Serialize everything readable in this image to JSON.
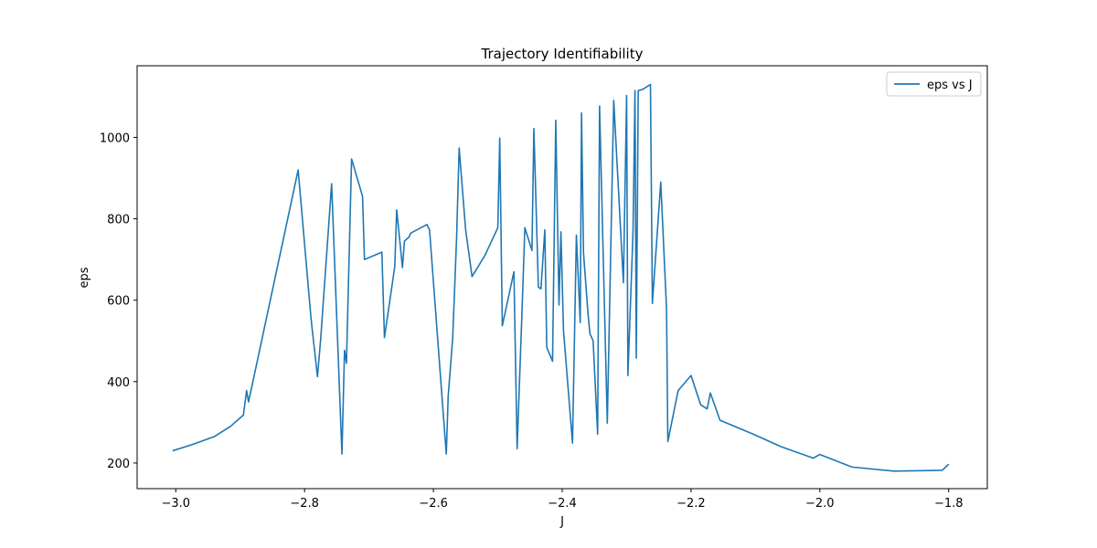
{
  "chart_data": {
    "type": "line",
    "title": "Trajectory Identifiability",
    "xlabel": "J",
    "ylabel": "eps",
    "xlim": [
      -3.06,
      -1.74
    ],
    "ylim": [
      137,
      1176
    ],
    "xticks": [
      -3.0,
      -2.8,
      -2.6,
      -2.4,
      -2.2,
      -2.0,
      -1.8
    ],
    "xtick_labels": [
      "−3.0",
      "−2.8",
      "−2.6",
      "−2.4",
      "−2.2",
      "−2.0",
      "−1.8"
    ],
    "yticks": [
      200,
      400,
      600,
      800,
      1000
    ],
    "ytick_labels": [
      "200",
      "400",
      "600",
      "800",
      "1000"
    ],
    "grid": false,
    "legend_position": "upper right",
    "series_color": "#1f77b4",
    "series": [
      {
        "name": "eps vs J",
        "x": [
          -3.005,
          -2.975,
          -2.94,
          -2.915,
          -2.895,
          -2.89,
          -2.887,
          -2.81,
          -2.79,
          -2.78,
          -2.775,
          -2.758,
          -2.742,
          -2.738,
          -2.735,
          -2.73,
          -2.727,
          -2.71,
          -2.707,
          -2.68,
          -2.676,
          -2.66,
          -2.657,
          -2.648,
          -2.645,
          -2.638,
          -2.635,
          -2.61,
          -2.606,
          -2.58,
          -2.577,
          -2.57,
          -2.564,
          -2.56,
          -2.55,
          -2.54,
          -2.52,
          -2.5,
          -2.497,
          -2.493,
          -2.475,
          -2.47,
          -2.462,
          -2.458,
          -2.447,
          -2.444,
          -2.437,
          -2.433,
          -2.427,
          -2.424,
          -2.415,
          -2.41,
          -2.405,
          -2.402,
          -2.398,
          -2.384,
          -2.378,
          -2.372,
          -2.37,
          -2.367,
          -2.36,
          -2.357,
          -2.352,
          -2.345,
          -2.342,
          -2.33,
          -2.32,
          -2.305,
          -2.3,
          -2.298,
          -2.29,
          -2.287,
          -2.285,
          -2.282,
          -2.275,
          -2.268,
          -2.263,
          -2.26,
          -2.247,
          -2.238,
          -2.236,
          -2.22,
          -2.2,
          -2.185,
          -2.175,
          -2.17,
          -2.155,
          -2.105,
          -2.06,
          -2.01,
          -2.0,
          -1.95,
          -1.885,
          -1.81,
          -1.8
        ],
        "y": [
          230,
          245,
          265,
          290,
          318,
          378,
          350,
          920,
          555,
          412,
          505,
          886,
          222,
          477,
          445,
          760,
          947,
          855,
          700,
          718,
          508,
          682,
          822,
          680,
          745,
          755,
          765,
          786,
          773,
          222,
          365,
          508,
          752,
          974,
          774,
          658,
          710,
          778,
          998,
          537,
          670,
          235,
          592,
          778,
          722,
          1022,
          632,
          628,
          773,
          484,
          450,
          1042,
          588,
          768,
          525,
          249,
          760,
          545,
          1060,
          718,
          568,
          518,
          500,
          271,
          1077,
          298,
          1091,
          643,
          1103,
          415,
          770,
          1115,
          458,
          1115,
          1118,
          1125,
          1130,
          592,
          890,
          578,
          253,
          378,
          415,
          343,
          333,
          372,
          305,
          272,
          240,
          212,
          221,
          190,
          180,
          182,
          197
        ]
      }
    ]
  }
}
